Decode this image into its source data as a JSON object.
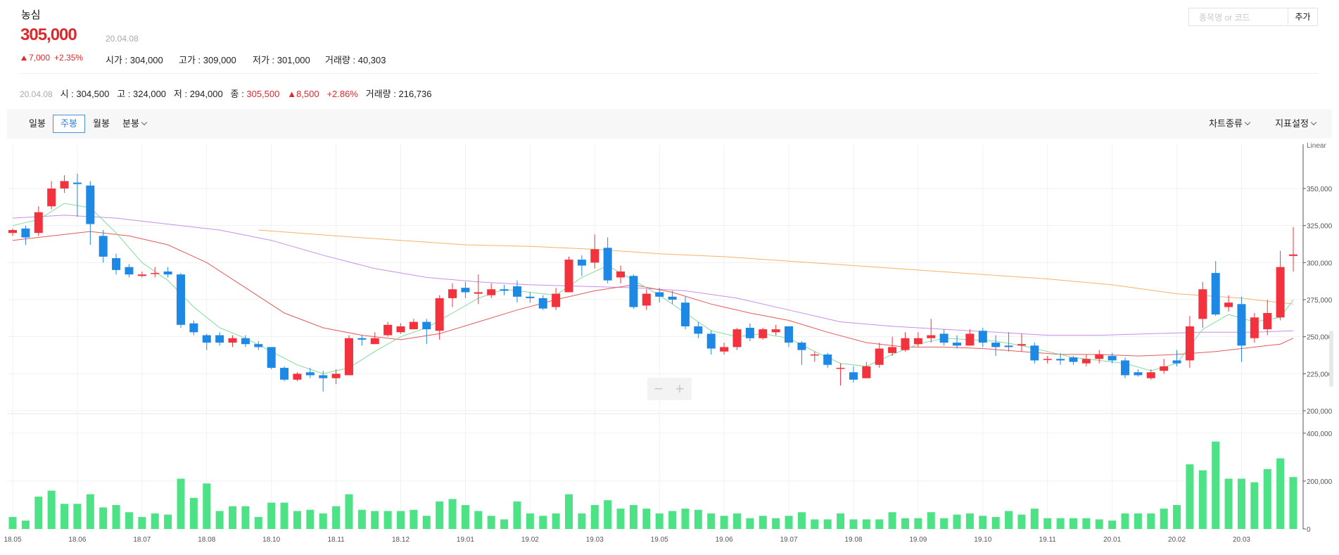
{
  "stock": {
    "name": "농심",
    "price": "305,000",
    "date": "20.04.08",
    "change": "7,000",
    "change_pct": "+2.35%",
    "open_label": "시가",
    "open": "304,000",
    "high_label": "고가",
    "high": "309,000",
    "low_label": "저가",
    "low": "301,000",
    "volume_label": "거래량",
    "volume": "40,303"
  },
  "weekly": {
    "date": "20.04.08",
    "open_label": "시",
    "open": "304,500",
    "high_label": "고",
    "high": "324,000",
    "low_label": "저",
    "low": "294,000",
    "close_label": "종",
    "close": "305,500",
    "change": "8,500",
    "change_pct": "+2.86%",
    "volume_label": "거래량",
    "volume": "216,736"
  },
  "search": {
    "placeholder": "종목명 or 코드",
    "add_label": "추가"
  },
  "toolbar": {
    "periods": [
      "일봉",
      "주봉",
      "월봉",
      "분봉"
    ],
    "active_period": "주봉",
    "chart_type_label": "차트종류",
    "indicator_label": "지표설정"
  },
  "colors": {
    "up": "#f2333d",
    "down": "#1e88e5",
    "volume": "#4ee287",
    "ma5": "#7fdc9b",
    "ma20": "#e4595b",
    "ma60": "#c78ee6",
    "ma120": "#f4b26a"
  },
  "chart_data": {
    "type": "candlestick",
    "scale_label": "Linear",
    "price_ticks": [
      200000,
      225000,
      250000,
      275000,
      300000,
      325000,
      350000
    ],
    "price_tick_labels": [
      "200,000",
      "225,000",
      "250,000",
      "275,000",
      "300,000",
      "325,000",
      "350,000"
    ],
    "price_range": [
      200000,
      378000
    ],
    "volume_ticks": [
      0,
      200000,
      400000
    ],
    "volume_tick_labels": [
      "0",
      "200,000",
      "400,000"
    ],
    "volume_range": [
      0,
      470000
    ],
    "x_labels": [
      {
        "i": 0,
        "label": "18.05"
      },
      {
        "i": 5,
        "label": "18.06"
      },
      {
        "i": 10,
        "label": "18.07"
      },
      {
        "i": 15,
        "label": "18.08"
      },
      {
        "i": 20,
        "label": "18.10"
      },
      {
        "i": 25,
        "label": "18.11"
      },
      {
        "i": 30,
        "label": "18.12"
      },
      {
        "i": 35,
        "label": "19.01"
      },
      {
        "i": 40,
        "label": "19.02"
      },
      {
        "i": 45,
        "label": "19.03"
      },
      {
        "i": 50,
        "label": "19.05"
      },
      {
        "i": 55,
        "label": "19.06"
      },
      {
        "i": 60,
        "label": "19.07"
      },
      {
        "i": 65,
        "label": "19.08"
      },
      {
        "i": 70,
        "label": "19.09"
      },
      {
        "i": 75,
        "label": "19.10"
      },
      {
        "i": 80,
        "label": "19.11"
      },
      {
        "i": 85,
        "label": "20.01"
      },
      {
        "i": 90,
        "label": "20.02"
      },
      {
        "i": 95,
        "label": "20.03"
      }
    ],
    "candles": [
      [
        320000,
        322000,
        323000,
        318000,
        50000
      ],
      [
        323000,
        317000,
        325000,
        312000,
        35000
      ],
      [
        320000,
        334000,
        338000,
        318000,
        135000
      ],
      [
        338000,
        350000,
        355000,
        336000,
        160000
      ],
      [
        350000,
        355000,
        359000,
        347000,
        105000
      ],
      [
        354000,
        353000,
        360000,
        331000,
        105000
      ],
      [
        352000,
        326000,
        355000,
        312000,
        145000
      ],
      [
        318000,
        304000,
        322000,
        300000,
        90000
      ],
      [
        303000,
        295000,
        306000,
        292000,
        100000
      ],
      [
        297000,
        292000,
        299000,
        290000,
        70000
      ],
      [
        291000,
        292000,
        294000,
        290000,
        50000
      ],
      [
        293000,
        293000,
        297000,
        290000,
        65000
      ],
      [
        294000,
        292000,
        297000,
        290000,
        60000
      ],
      [
        292000,
        258000,
        293000,
        256000,
        210000
      ],
      [
        259000,
        253000,
        261000,
        251000,
        130000
      ],
      [
        251000,
        246000,
        252000,
        241000,
        190000
      ],
      [
        251000,
        246000,
        253000,
        244000,
        75000
      ],
      [
        246000,
        249000,
        251000,
        243000,
        95000
      ],
      [
        249000,
        245000,
        251000,
        243000,
        95000
      ],
      [
        245000,
        243000,
        247000,
        241000,
        50000
      ],
      [
        243000,
        229000,
        243000,
        228000,
        110000
      ],
      [
        229000,
        221000,
        230000,
        220000,
        110000
      ],
      [
        221000,
        225000,
        226000,
        220000,
        75000
      ],
      [
        226000,
        224000,
        229000,
        222000,
        80000
      ],
      [
        224000,
        222000,
        227000,
        213000,
        65000
      ],
      [
        222000,
        225000,
        228000,
        218000,
        95000
      ],
      [
        224000,
        249000,
        251000,
        224000,
        145000
      ],
      [
        249000,
        248000,
        251000,
        244000,
        80000
      ],
      [
        245000,
        249000,
        253000,
        245000,
        75000
      ],
      [
        251000,
        258000,
        260000,
        250000,
        75000
      ],
      [
        253000,
        257000,
        259000,
        252000,
        75000
      ],
      [
        255000,
        260000,
        262000,
        255000,
        80000
      ],
      [
        260000,
        255000,
        262000,
        245000,
        55000
      ],
      [
        254000,
        276000,
        278000,
        248000,
        115000
      ],
      [
        276000,
        282000,
        286000,
        270000,
        125000
      ],
      [
        283000,
        280000,
        287000,
        276000,
        100000
      ],
      [
        279000,
        280000,
        292000,
        272000,
        75000
      ],
      [
        278000,
        282000,
        286000,
        276000,
        55000
      ],
      [
        282000,
        281000,
        285000,
        278000,
        40000
      ],
      [
        284000,
        277000,
        288000,
        273000,
        115000
      ],
      [
        277000,
        276000,
        280000,
        273000,
        65000
      ],
      [
        276000,
        269000,
        278000,
        268000,
        55000
      ],
      [
        270000,
        279000,
        283000,
        268000,
        65000
      ],
      [
        280000,
        302000,
        304000,
        280000,
        145000
      ],
      [
        302000,
        298000,
        305000,
        291000,
        65000
      ],
      [
        300000,
        309000,
        319000,
        296000,
        100000
      ],
      [
        310000,
        288000,
        317000,
        286000,
        120000
      ],
      [
        290000,
        294000,
        298000,
        286000,
        85000
      ],
      [
        291000,
        270000,
        292000,
        269000,
        100000
      ],
      [
        271000,
        279000,
        282000,
        268000,
        85000
      ],
      [
        280000,
        277000,
        283000,
        273000,
        65000
      ],
      [
        277000,
        275000,
        281000,
        272000,
        75000
      ],
      [
        273000,
        257000,
        277000,
        255000,
        85000
      ],
      [
        257000,
        252000,
        260000,
        249000,
        80000
      ],
      [
        252000,
        242000,
        254000,
        238000,
        65000
      ],
      [
        240000,
        243000,
        246000,
        238000,
        55000
      ],
      [
        243000,
        255000,
        256000,
        241000,
        65000
      ],
      [
        256000,
        249000,
        259000,
        247000,
        45000
      ],
      [
        249000,
        255000,
        256000,
        248000,
        55000
      ],
      [
        253000,
        255000,
        258000,
        251000,
        45000
      ],
      [
        257000,
        246000,
        257000,
        243000,
        55000
      ],
      [
        246000,
        241000,
        247000,
        231000,
        70000
      ],
      [
        238000,
        238000,
        240000,
        233000,
        40000
      ],
      [
        238000,
        231000,
        239000,
        229000,
        40000
      ],
      [
        229000,
        229000,
        232000,
        217000,
        65000
      ],
      [
        226000,
        221000,
        230000,
        219000,
        40000
      ],
      [
        222000,
        230000,
        233000,
        222000,
        40000
      ],
      [
        231000,
        242000,
        246000,
        229000,
        40000
      ],
      [
        239000,
        243000,
        250000,
        237000,
        70000
      ],
      [
        241000,
        249000,
        253000,
        240000,
        45000
      ],
      [
        245000,
        249000,
        253000,
        243000,
        45000
      ],
      [
        249000,
        251000,
        262000,
        246000,
        70000
      ],
      [
        252000,
        246000,
        255000,
        244000,
        45000
      ],
      [
        246000,
        244000,
        251000,
        242000,
        60000
      ],
      [
        244000,
        252000,
        255000,
        244000,
        65000
      ],
      [
        254000,
        246000,
        256000,
        243000,
        55000
      ],
      [
        246000,
        243000,
        251000,
        237000,
        50000
      ],
      [
        244000,
        243000,
        253000,
        240000,
        75000
      ],
      [
        244000,
        245000,
        252000,
        240000,
        60000
      ],
      [
        244000,
        234000,
        246000,
        232000,
        85000
      ],
      [
        235000,
        235000,
        237000,
        232000,
        45000
      ],
      [
        235000,
        234000,
        239000,
        231000,
        45000
      ],
      [
        236000,
        233000,
        237000,
        231000,
        45000
      ],
      [
        232000,
        235000,
        238000,
        230000,
        45000
      ],
      [
        235000,
        238000,
        241000,
        232000,
        40000
      ],
      [
        237000,
        234000,
        239000,
        232000,
        35000
      ],
      [
        234000,
        224000,
        236000,
        222000,
        65000
      ],
      [
        226000,
        224000,
        228000,
        223000,
        65000
      ],
      [
        222000,
        226000,
        228000,
        221000,
        65000
      ],
      [
        227000,
        230000,
        235000,
        225000,
        85000
      ],
      [
        234000,
        232000,
        241000,
        230000,
        100000
      ],
      [
        234000,
        257000,
        264000,
        229000,
        270000
      ],
      [
        262000,
        282000,
        287000,
        256000,
        245000
      ],
      [
        293000,
        265000,
        301000,
        264000,
        365000
      ],
      [
        270000,
        273000,
        278000,
        267000,
        210000
      ],
      [
        272000,
        244000,
        277000,
        233000,
        210000
      ],
      [
        249000,
        263000,
        266000,
        246000,
        195000
      ],
      [
        255000,
        266000,
        275000,
        251000,
        250000
      ],
      [
        263000,
        297000,
        308000,
        261000,
        295000
      ],
      [
        304500,
        305500,
        324000,
        294000,
        216736
      ]
    ],
    "ma5": [
      [
        0,
        325000
      ],
      [
        2,
        329000
      ],
      [
        4,
        340000
      ],
      [
        6,
        337000
      ],
      [
        8,
        320000
      ],
      [
        10,
        300000
      ],
      [
        12,
        288000
      ],
      [
        14,
        270000
      ],
      [
        16,
        256000
      ],
      [
        18,
        249000
      ],
      [
        20,
        240000
      ],
      [
        22,
        231000
      ],
      [
        24,
        225000
      ],
      [
        26,
        229000
      ],
      [
        28,
        240000
      ],
      [
        30,
        250000
      ],
      [
        32,
        256000
      ],
      [
        34,
        266000
      ],
      [
        36,
        276000
      ],
      [
        38,
        282000
      ],
      [
        40,
        280000
      ],
      [
        42,
        278000
      ],
      [
        44,
        290000
      ],
      [
        46,
        298000
      ],
      [
        48,
        288000
      ],
      [
        50,
        278000
      ],
      [
        52,
        266000
      ],
      [
        54,
        254000
      ],
      [
        56,
        250000
      ],
      [
        58,
        252000
      ],
      [
        60,
        249000
      ],
      [
        62,
        240000
      ],
      [
        64,
        232000
      ],
      [
        66,
        230000
      ],
      [
        68,
        238000
      ],
      [
        70,
        245000
      ],
      [
        72,
        249000
      ],
      [
        74,
        248000
      ],
      [
        76,
        247000
      ],
      [
        78,
        244000
      ],
      [
        80,
        240000
      ],
      [
        82,
        236000
      ],
      [
        84,
        234000
      ],
      [
        86,
        232000
      ],
      [
        88,
        227000
      ],
      [
        90,
        232000
      ],
      [
        92,
        255000
      ],
      [
        94,
        265000
      ],
      [
        96,
        260000
      ],
      [
        98,
        263000
      ],
      [
        99,
        275000
      ]
    ],
    "ma20": [
      [
        0,
        315000
      ],
      [
        3,
        318000
      ],
      [
        6,
        321000
      ],
      [
        9,
        318000
      ],
      [
        12,
        312000
      ],
      [
        15,
        300000
      ],
      [
        18,
        283000
      ],
      [
        21,
        266000
      ],
      [
        24,
        256000
      ],
      [
        27,
        251000
      ],
      [
        30,
        248000
      ],
      [
        33,
        252000
      ],
      [
        36,
        260000
      ],
      [
        39,
        268000
      ],
      [
        42,
        275000
      ],
      [
        45,
        281000
      ],
      [
        48,
        285000
      ],
      [
        51,
        280000
      ],
      [
        54,
        272000
      ],
      [
        57,
        266000
      ],
      [
        60,
        261000
      ],
      [
        63,
        253000
      ],
      [
        66,
        246000
      ],
      [
        69,
        243000
      ],
      [
        72,
        243000
      ],
      [
        75,
        242000
      ],
      [
        78,
        240000
      ],
      [
        81,
        238000
      ],
      [
        84,
        238000
      ],
      [
        87,
        237000
      ],
      [
        90,
        238000
      ],
      [
        93,
        240000
      ],
      [
        96,
        243000
      ],
      [
        98,
        245000
      ],
      [
        99,
        249000
      ]
    ],
    "ma60": [
      [
        0,
        330000
      ],
      [
        4,
        332000
      ],
      [
        8,
        330000
      ],
      [
        12,
        326000
      ],
      [
        16,
        322000
      ],
      [
        20,
        315000
      ],
      [
        24,
        305000
      ],
      [
        28,
        296000
      ],
      [
        32,
        290000
      ],
      [
        36,
        287000
      ],
      [
        40,
        285000
      ],
      [
        44,
        284000
      ],
      [
        48,
        283000
      ],
      [
        52,
        281000
      ],
      [
        56,
        276000
      ],
      [
        60,
        268000
      ],
      [
        64,
        260000
      ],
      [
        68,
        257000
      ],
      [
        72,
        255000
      ],
      [
        76,
        253000
      ],
      [
        80,
        251000
      ],
      [
        84,
        251000
      ],
      [
        88,
        252000
      ],
      [
        92,
        253000
      ],
      [
        96,
        253000
      ],
      [
        99,
        254000
      ]
    ],
    "ma120": [
      [
        19,
        322000
      ],
      [
        25,
        318000
      ],
      [
        30,
        315000
      ],
      [
        35,
        312000
      ],
      [
        40,
        311000
      ],
      [
        45,
        309000
      ],
      [
        50,
        306000
      ],
      [
        55,
        304000
      ],
      [
        60,
        301000
      ],
      [
        65,
        298000
      ],
      [
        70,
        295000
      ],
      [
        75,
        292000
      ],
      [
        80,
        289000
      ],
      [
        85,
        285000
      ],
      [
        90,
        279000
      ],
      [
        95,
        276000
      ],
      [
        99,
        272000
      ]
    ]
  }
}
